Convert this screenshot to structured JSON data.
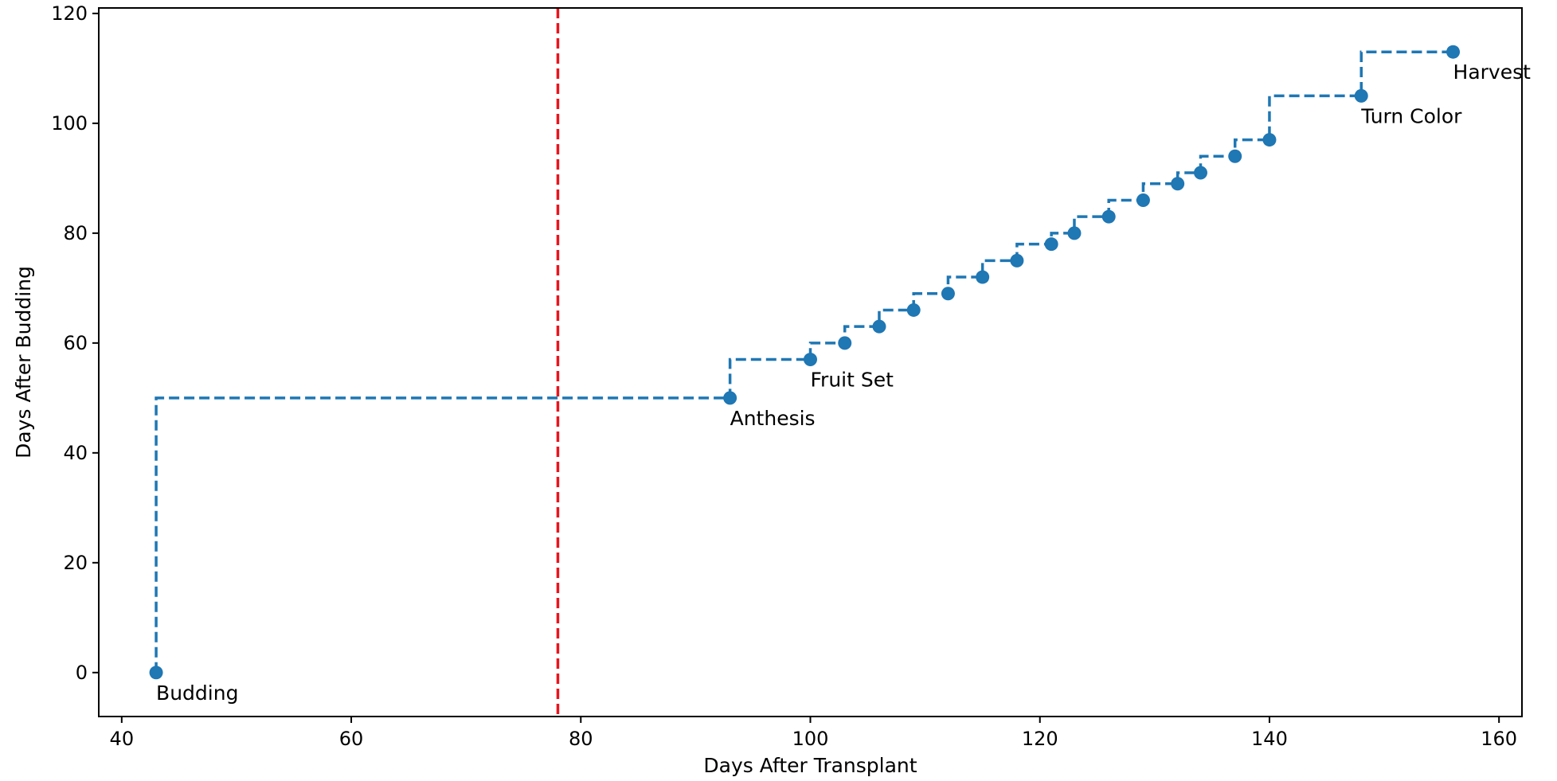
{
  "chart_data": {
    "type": "line",
    "title": "",
    "xlabel": "Days After Transplant",
    "ylabel": "Days After Budding",
    "xlim": [
      38,
      162
    ],
    "ylim": [
      -8,
      121
    ],
    "xticks": [
      40,
      60,
      80,
      100,
      120,
      140,
      160
    ],
    "yticks": [
      0,
      20,
      40,
      60,
      80,
      100,
      120
    ],
    "grid": false,
    "step": "post",
    "series": [
      {
        "line_style": "dashed",
        "marker": "circle",
        "color": "#1f77b4",
        "x": [
          43,
          93,
          100,
          103,
          106,
          109,
          112,
          115,
          118,
          121,
          123,
          126,
          129,
          132,
          134,
          137,
          140,
          148,
          156
        ],
        "y": [
          0,
          50,
          57,
          60,
          63,
          66,
          69,
          72,
          75,
          78,
          80,
          83,
          86,
          89,
          91,
          94,
          97,
          105,
          113
        ]
      }
    ],
    "reference_lines": [
      {
        "orientation": "vertical",
        "x": 78,
        "color": "#e8141e",
        "line_style": "dashed"
      }
    ],
    "annotations": [
      {
        "text": "Budding",
        "x": 43,
        "y": 0
      },
      {
        "text": "Anthesis",
        "x": 93,
        "y": 50
      },
      {
        "text": "Fruit Set",
        "x": 100,
        "y": 57
      },
      {
        "text": "Turn Color",
        "x": 148,
        "y": 105
      },
      {
        "text": "Harvest",
        "x": 156,
        "y": 113
      }
    ]
  }
}
